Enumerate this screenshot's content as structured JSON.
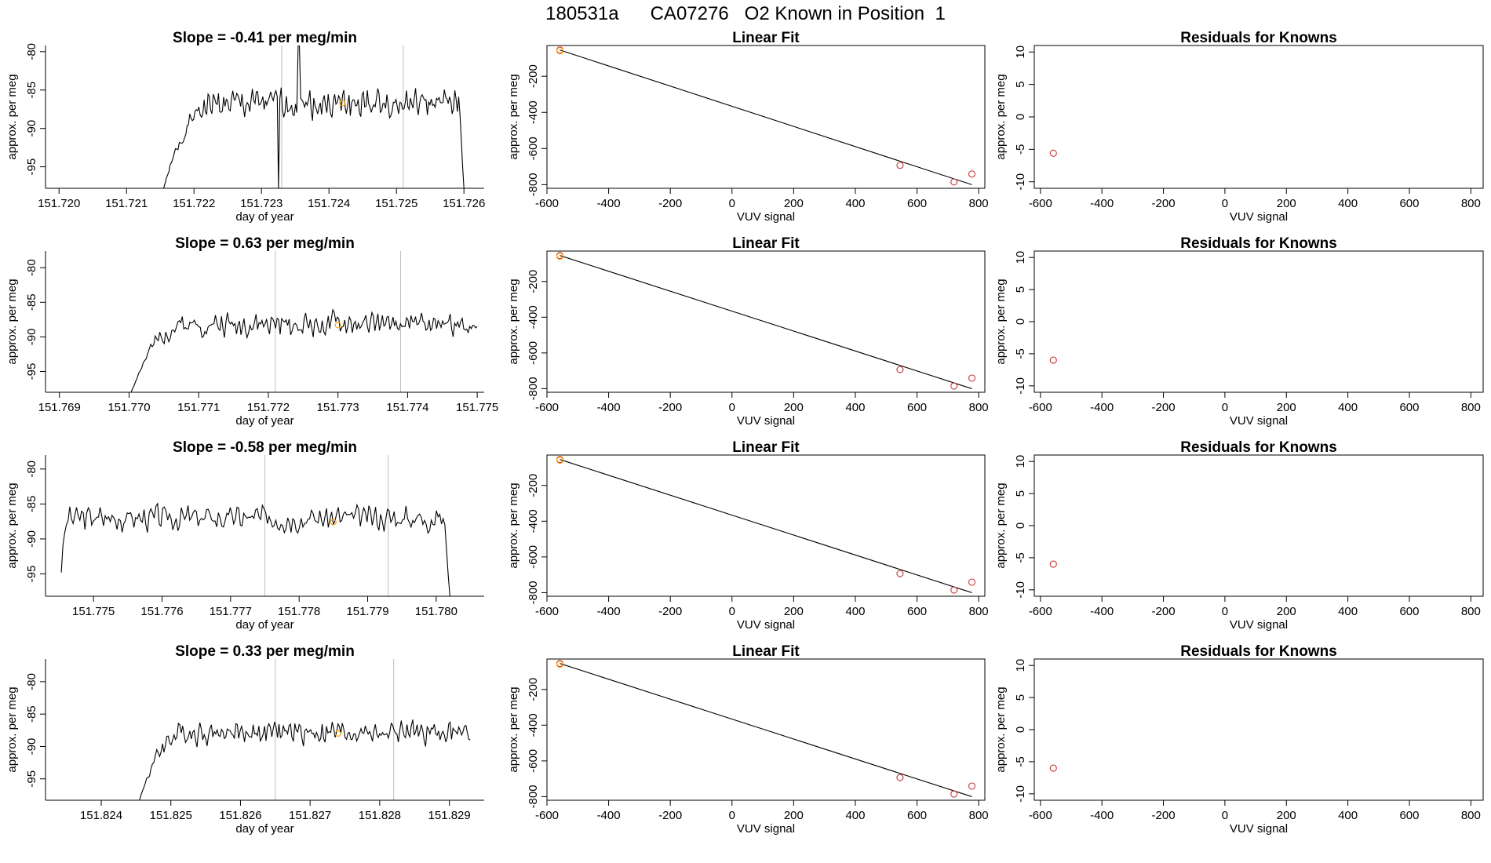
{
  "title": "180531a      CA07276   O2 Known in Position  1",
  "colors": {
    "trace": "#000000",
    "known_marker": "#ffa500",
    "points": "#cd3333",
    "vline": "#bebebe",
    "frame": "#000000"
  },
  "chart_data": [
    {
      "type": "line",
      "row": 0,
      "panel": "timeseries",
      "title": "Slope =  -0.41  per meg/min",
      "xlabel": "day of year",
      "ylabel": "approx. per meg",
      "xlim": [
        151.7198,
        151.7263
      ],
      "ylim": [
        -97.8,
        -79.2
      ],
      "xticks": [
        "151.720",
        "151.721",
        "151.722",
        "151.723",
        "151.724",
        "151.725",
        "151.726"
      ],
      "yticks": [
        "-80",
        "-85",
        "-90",
        "-95"
      ],
      "vlines": [
        151.7233,
        151.7251
      ],
      "marker": {
        "x": 151.7242,
        "y": -86.7
      },
      "trace": {
        "x_start": 151.72155,
        "x_end": 151.726,
        "seed": 1,
        "base": -86.8,
        "amp": 2.0,
        "start_y": -97.8,
        "ramp_frac": 0.18,
        "end_y": -97.8,
        "spike_at": 151.72355,
        "spike_y": -79.2,
        "dip_at": 151.72325,
        "dip_y": -97.8
      }
    },
    {
      "type": "scatter",
      "row": 0,
      "panel": "linear_fit",
      "title": "Linear Fit",
      "xlabel": "VUV signal",
      "ylabel": "approx. per meg",
      "xlim": [
        -600,
        820
      ],
      "ylim": [
        -820,
        -30
      ],
      "xticks": [
        -600,
        -400,
        -200,
        0,
        200,
        400,
        600,
        800
      ],
      "yticks": [
        -200,
        -400,
        -600,
        -800
      ],
      "points": [
        {
          "x": -558,
          "y": -55,
          "known": true
        },
        {
          "x": 545,
          "y": -693
        },
        {
          "x": 720,
          "y": -785
        },
        {
          "x": 778,
          "y": -741
        }
      ],
      "fit": {
        "x": [
          -558,
          778
        ],
        "y": [
          -55,
          -800
        ]
      }
    },
    {
      "type": "scatter",
      "row": 0,
      "panel": "residuals",
      "title": "Residuals for Knowns",
      "xlabel": "VUV signal",
      "ylabel": "approx. per meg",
      "xlim": [
        -620,
        840
      ],
      "ylim": [
        -11,
        11
      ],
      "xticks": [
        -600,
        -400,
        -200,
        0,
        200,
        400,
        600,
        800
      ],
      "yticks": [
        10,
        5,
        0,
        -5,
        -10
      ],
      "points": [
        {
          "x": -558,
          "y": -5.6
        }
      ]
    },
    {
      "type": "line",
      "row": 1,
      "panel": "timeseries",
      "title": "Slope =  0.63  per meg/min",
      "xlabel": "day of year",
      "ylabel": "approx. per meg",
      "xlim": [
        151.7688,
        151.7751
      ],
      "ylim": [
        -98.0,
        -77.6
      ],
      "xticks": [
        "151.769",
        "151.770",
        "151.771",
        "151.772",
        "151.773",
        "151.774",
        "151.775"
      ],
      "yticks": [
        "-80",
        "-85",
        "-90",
        "-95"
      ],
      "vlines": [
        151.7721,
        151.7739
      ],
      "marker": {
        "x": 151.773,
        "y": -88.3
      },
      "trace": {
        "x_start": 151.77003,
        "x_end": 151.775,
        "seed": 2,
        "base": -88.2,
        "amp": 1.8,
        "start_y": -98.0,
        "ramp_frac": 0.16,
        "end_y": -88.5
      }
    },
    {
      "type": "scatter",
      "row": 1,
      "panel": "linear_fit",
      "title": "Linear Fit",
      "xlabel": "VUV signal",
      "ylabel": "approx. per meg",
      "xlim": [
        -600,
        820
      ],
      "ylim": [
        -820,
        -30
      ],
      "xticks": [
        -600,
        -400,
        -200,
        0,
        200,
        400,
        600,
        800
      ],
      "yticks": [
        -200,
        -400,
        -600,
        -800
      ],
      "points": [
        {
          "x": -558,
          "y": -55,
          "known": true
        },
        {
          "x": 545,
          "y": -693
        },
        {
          "x": 720,
          "y": -785
        },
        {
          "x": 778,
          "y": -741
        }
      ],
      "fit": {
        "x": [
          -558,
          778
        ],
        "y": [
          -55,
          -800
        ]
      }
    },
    {
      "type": "scatter",
      "row": 1,
      "panel": "residuals",
      "title": "Residuals for Knowns",
      "xlabel": "VUV signal",
      "ylabel": "approx. per meg",
      "xlim": [
        -620,
        840
      ],
      "ylim": [
        -11,
        11
      ],
      "xticks": [
        -600,
        -400,
        -200,
        0,
        200,
        400,
        600,
        800
      ],
      "yticks": [
        10,
        5,
        0,
        -5,
        -10
      ],
      "points": [
        {
          "x": -558,
          "y": -6.0
        }
      ]
    },
    {
      "type": "line",
      "row": 2,
      "panel": "timeseries",
      "title": "Slope =  -0.58  per meg/min",
      "xlabel": "day of year",
      "ylabel": "approx. per meg",
      "xlim": [
        151.7743,
        151.7807
      ],
      "ylim": [
        -98.2,
        -78.0
      ],
      "xticks": [
        "151.775",
        "151.776",
        "151.777",
        "151.778",
        "151.779",
        "151.780"
      ],
      "yticks": [
        "-80",
        "-85",
        "-90",
        "-95"
      ],
      "vlines": [
        151.7775,
        151.7793
      ],
      "marker": {
        "x": 151.7785,
        "y": -87.6
      },
      "trace": {
        "x_start": 151.77453,
        "x_end": 151.7802,
        "seed": 3,
        "base": -87.0,
        "amp": 1.9,
        "start_y": -94.8,
        "ramp_frac": 0.02,
        "end_y": -98.2
      }
    },
    {
      "type": "scatter",
      "row": 2,
      "panel": "linear_fit",
      "title": "Linear Fit",
      "xlabel": "VUV signal",
      "ylabel": "approx. per meg",
      "xlim": [
        -600,
        820
      ],
      "ylim": [
        -820,
        -30
      ],
      "xticks": [
        -600,
        -400,
        -200,
        0,
        200,
        400,
        600,
        800
      ],
      "yticks": [
        -200,
        -400,
        -600,
        -800
      ],
      "points": [
        {
          "x": -558,
          "y": -55,
          "known": true
        },
        {
          "x": 545,
          "y": -693
        },
        {
          "x": 720,
          "y": -785
        },
        {
          "x": 778,
          "y": -741
        }
      ],
      "fit": {
        "x": [
          -558,
          778
        ],
        "y": [
          -55,
          -800
        ]
      }
    },
    {
      "type": "scatter",
      "row": 2,
      "panel": "residuals",
      "title": "Residuals for Knowns",
      "xlabel": "VUV signal",
      "ylabel": "approx. per meg",
      "xlim": [
        -620,
        840
      ],
      "ylim": [
        -11,
        11
      ],
      "xticks": [
        -600,
        -400,
        -200,
        0,
        200,
        400,
        600,
        800
      ],
      "yticks": [
        10,
        5,
        0,
        -5,
        -10
      ],
      "points": [
        {
          "x": -558,
          "y": -6.0
        }
      ]
    },
    {
      "type": "line",
      "row": 3,
      "panel": "timeseries",
      "title": "Slope =  0.33  per meg/min",
      "xlabel": "day of year",
      "ylabel": "approx. per meg",
      "xlim": [
        151.8232,
        151.8295
      ],
      "ylim": [
        -98.3,
        -76.5
      ],
      "xticks": [
        "151.824",
        "151.825",
        "151.826",
        "151.827",
        "151.828",
        "151.829"
      ],
      "yticks": [
        "-80",
        "-85",
        "-90",
        "-95"
      ],
      "vlines": [
        151.8265,
        151.8282
      ],
      "marker": {
        "x": 151.8274,
        "y": -88.0
      },
      "trace": {
        "x_start": 151.82455,
        "x_end": 151.8293,
        "seed": 4,
        "base": -87.8,
        "amp": 1.9,
        "start_y": -98.3,
        "ramp_frac": 0.14,
        "end_y": -89.0
      }
    },
    {
      "type": "scatter",
      "row": 3,
      "panel": "linear_fit",
      "title": "Linear Fit",
      "xlabel": "VUV signal",
      "ylabel": "approx. per meg",
      "xlim": [
        -600,
        820
      ],
      "ylim": [
        -820,
        -30
      ],
      "xticks": [
        -600,
        -400,
        -200,
        0,
        200,
        400,
        600,
        800
      ],
      "yticks": [
        -200,
        -400,
        -600,
        -800
      ],
      "points": [
        {
          "x": -558,
          "y": -55,
          "known": true
        },
        {
          "x": 545,
          "y": -693
        },
        {
          "x": 720,
          "y": -785
        },
        {
          "x": 778,
          "y": -741
        }
      ],
      "fit": {
        "x": [
          -558,
          778
        ],
        "y": [
          -55,
          -800
        ]
      }
    },
    {
      "type": "scatter",
      "row": 3,
      "panel": "residuals",
      "title": "Residuals for Knowns",
      "xlabel": "VUV signal",
      "ylabel": "approx. per meg",
      "xlim": [
        -620,
        840
      ],
      "ylim": [
        -11,
        11
      ],
      "xticks": [
        -600,
        -400,
        -200,
        0,
        200,
        400,
        600,
        800
      ],
      "yticks": [
        10,
        5,
        0,
        -5,
        -10
      ],
      "points": [
        {
          "x": -558,
          "y": -6.0
        }
      ]
    }
  ]
}
